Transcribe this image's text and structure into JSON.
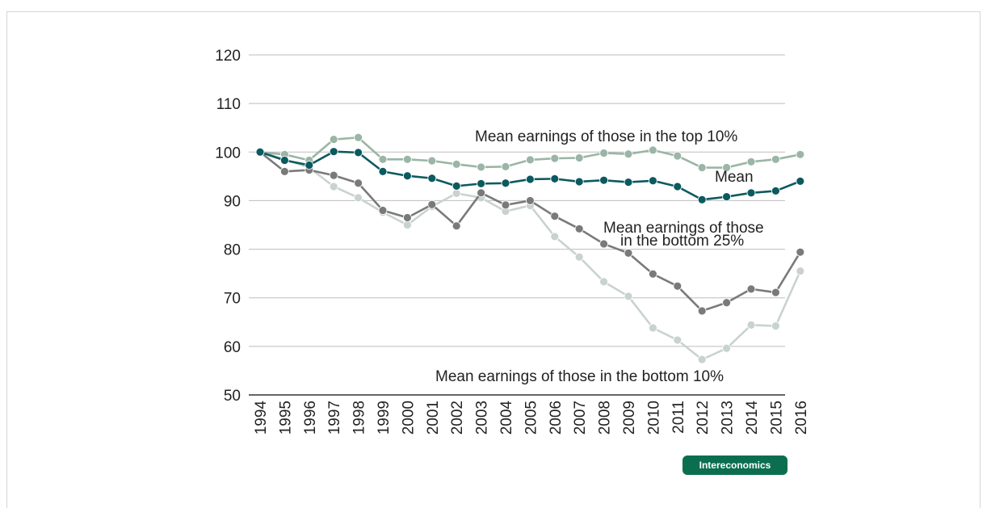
{
  "chart_data": {
    "type": "line",
    "title": "",
    "xlabel": "",
    "ylabel": "",
    "ylim": [
      50,
      120
    ],
    "yticks": [
      50,
      60,
      70,
      80,
      90,
      100,
      110,
      120
    ],
    "grid": true,
    "categories": [
      "1994",
      "1995",
      "1996",
      "1997",
      "1998",
      "1999",
      "2000",
      "2001",
      "2002",
      "2003",
      "2004",
      "2005",
      "2006",
      "2007",
      "2008",
      "2009",
      "2010",
      "2011",
      "2012",
      "2013",
      "2014",
      "2015",
      "2016"
    ],
    "series": [
      {
        "name": "Mean earnings of those in the top 10%",
        "color": "#9bb5a6",
        "values": [
          100,
          99.5,
          98.3,
          102.6,
          103.0,
          98.5,
          98.5,
          98.2,
          97.5,
          96.9,
          97.0,
          98.4,
          98.7,
          98.8,
          99.8,
          99.6,
          100.4,
          99.2,
          96.8,
          96.8,
          98.0,
          98.5,
          99.5
        ]
      },
      {
        "name": "Mean",
        "color": "#0b5a5f",
        "values": [
          100,
          98.3,
          97.3,
          100.1,
          99.9,
          96.0,
          95.1,
          94.6,
          93.0,
          93.5,
          93.6,
          94.4,
          94.5,
          93.9,
          94.2,
          93.8,
          94.1,
          92.9,
          90.2,
          90.8,
          91.6,
          92.0,
          94.0
        ]
      },
      {
        "name": "Mean earnings of those in the bottom 25%",
        "color": "#7a7a7a",
        "values": [
          100,
          96.0,
          96.3,
          95.2,
          93.6,
          88.0,
          86.5,
          89.2,
          84.8,
          91.6,
          89.1,
          90.0,
          86.8,
          84.2,
          81.1,
          79.2,
          74.9,
          72.4,
          67.3,
          69.0,
          71.8,
          71.1,
          79.4
        ]
      },
      {
        "name": "Mean earnings of those in the bottom 10%",
        "color": "#c9d3cd",
        "values": [
          100,
          98.5,
          96.8,
          92.9,
          90.6,
          87.6,
          85.0,
          88.8,
          91.5,
          90.6,
          87.8,
          89.0,
          82.6,
          78.4,
          73.3,
          70.3,
          63.8,
          61.3,
          57.3,
          59.6,
          64.4,
          64.2,
          75.5
        ]
      }
    ],
    "annotations": {
      "top10": "Mean earnings of those in the top 10%",
      "mean": "Mean",
      "bottom25_line1": "Mean earnings of those",
      "bottom25_line2": "in the bottom 25%",
      "bottom10": "Mean earnings of those in the bottom 10%"
    }
  },
  "badge": {
    "label": "Intereconomics",
    "color": "#0b6e4f"
  }
}
